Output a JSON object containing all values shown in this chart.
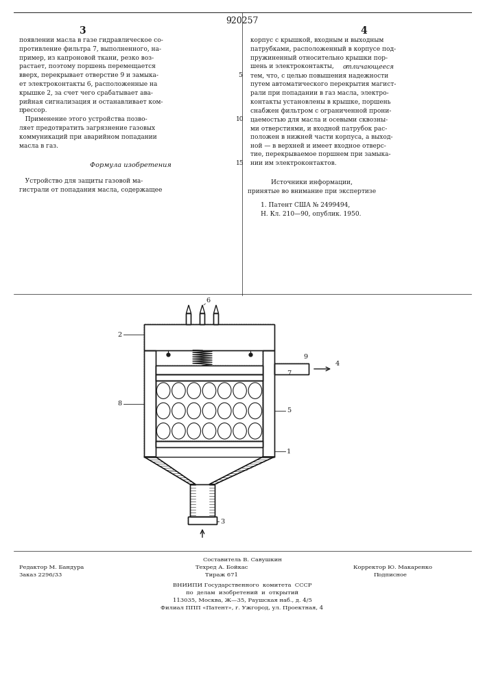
{
  "title_number": "920257",
  "page_left": "3",
  "page_right": "4",
  "col_left_text": [
    "появлении масла в газе гидравлическое со-",
    "противление фильтра 7, выполненного, на-",
    "пример, из капроновой ткани, резко воз-",
    "растает, поэтому поршень перемещается",
    "вверх, перекрывает отверстие 9 и замыка-",
    "ет электроконтакты 6, расположенные на",
    "крышке 2, за счет чего срабатывает ава-",
    "рийная сигнализация и останавливает ком-",
    "прессор.",
    "   Применение этого устройства позво-",
    "ляет предотвратить загрязнение газовых",
    "коммуникаций при аварийном попадании",
    "масла в газ."
  ],
  "col_left_formula_header": "Формула изобретения",
  "col_left_formula_text": [
    "   Устройство для защиты газовой ма-",
    "гистрали от попадания масла, содержащее"
  ],
  "col_right_text": [
    "корпус с крышкой, входным и выходным",
    "патрубками, расположенный в корпусе под-",
    "пружиненный относительно крышки пор-",
    "шень и электроконтакты, отличающееся",
    "тем, что, с целью повышения надежности",
    "путем автоматического перекрытия магист-",
    "рали при попадании в газ масла, электро-",
    "контакты установлены в крышке, поршень",
    "снабжен фильтром с ограниченной прони-",
    "цаемостью для масла и осевыми сквозны-",
    "ми отверстиями, и входной патрубок рас-",
    "положен в нижней части корпуса, а выход-",
    "ной — в верхней и имеет входное отверс-",
    "тие, перекрываемое поршнем при замыка-",
    "нии им электроконтактов."
  ],
  "sources_header": "Источники информации,",
  "sources_subheader": "принятые во внимание при экспертизе",
  "source1": "1. Патент США № 2499494,",
  "source2": "Н. Кл. 210—90, опублик. 1950.",
  "footer_col1_line1": "Редактор М. Бандура",
  "footer_col1_line2": "Заказ 2296/33",
  "footer_col2_line0": "Составитель В. Савушкин",
  "footer_col2_line1": "Техред А. Бойкас",
  "footer_col2_line2": "Тираж 671",
  "footer_col3_line1": "Корректор Ю. Макаренко",
  "footer_col3_line2": "Подписное",
  "footer_org_line1": "ВНИИПИ Государственного  комитета  СССР",
  "footer_org_line2": "по  делам  изобретений  и  открытий",
  "footer_org_line3": "113035, Москва, Ж—35, Раушская наб., д. 4/5",
  "footer_org_line4": "Филиал ППП «Патент», г. Ужгород, ул. Проектная, 4",
  "bg_color": "#ffffff",
  "text_color": "#1a1a1a",
  "dc": "#1a1a1a"
}
